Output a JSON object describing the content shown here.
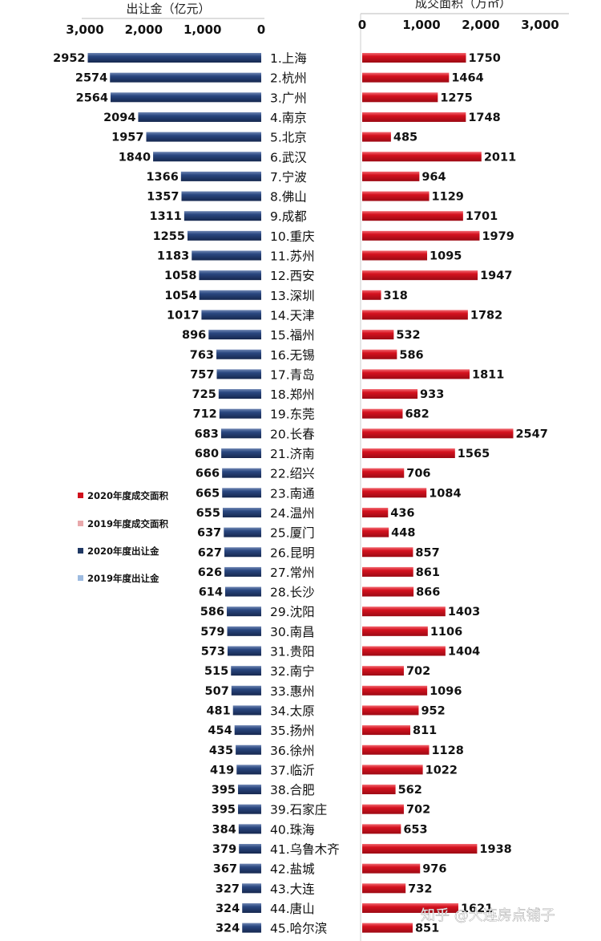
{
  "chart_data": [
    {
      "type": "bar",
      "orientation": "horizontal",
      "xlabel": "出让金（亿元）",
      "xlim": [
        3000,
        0
      ],
      "reversed": true,
      "ticks": [
        "3,000",
        "2,000",
        "1,000",
        "0"
      ],
      "categories": [
        "1.上海",
        "2.杭州",
        "3.广州",
        "4.南京",
        "5.北京",
        "6.武汉",
        "7.宁波",
        "8.佛山",
        "9.成都",
        "10.重庆",
        "11.苏州",
        "12.西安",
        "13.深圳",
        "14.天津",
        "15.福州",
        "16.无锡",
        "17.青岛",
        "18.郑州",
        "19.东莞",
        "20.长春",
        "21.济南",
        "22.绍兴",
        "23.南通",
        "24.温州",
        "25.厦门",
        "26.昆明",
        "27.常州",
        "28.长沙",
        "29.沈阳",
        "30.南昌",
        "31.贵阳",
        "32.南宁",
        "33.惠州",
        "34.太原",
        "35.扬州",
        "36.徐州",
        "37.临沂",
        "38.合肥",
        "39.石家庄",
        "40.珠海",
        "41.乌鲁木齐",
        "42.盐城",
        "43.大连",
        "44.唐山",
        "45.哈尔滨"
      ],
      "series": [
        {
          "name": "2020年度出让金",
          "color": "#1f3864",
          "values": [
            2952,
            2574,
            2564,
            2094,
            1957,
            1840,
            1366,
            1357,
            1311,
            1255,
            1183,
            1058,
            1054,
            1017,
            896,
            763,
            757,
            725,
            712,
            683,
            680,
            666,
            665,
            655,
            637,
            627,
            626,
            614,
            586,
            579,
            573,
            515,
            507,
            481,
            454,
            435,
            419,
            395,
            395,
            384,
            379,
            367,
            327,
            324,
            324
          ]
        }
      ]
    },
    {
      "type": "bar",
      "orientation": "horizontal",
      "xlabel": "成交面积（万㎡）",
      "xlim": [
        0,
        3000
      ],
      "ticks": [
        "0",
        "1,000",
        "2,000",
        "3,000"
      ],
      "series": [
        {
          "name": "2020年度成交面积",
          "color": "#d0101c",
          "values": [
            1750,
            1464,
            1275,
            1748,
            485,
            2011,
            964,
            1129,
            1701,
            1979,
            1095,
            1947,
            318,
            1782,
            532,
            586,
            1811,
            933,
            682,
            2547,
            1565,
            706,
            1084,
            436,
            448,
            857,
            861,
            866,
            1403,
            1106,
            1404,
            702,
            1096,
            952,
            811,
            1128,
            1022,
            562,
            702,
            653,
            1938,
            976,
            732,
            1621,
            851
          ]
        }
      ]
    }
  ],
  "legend": [
    {
      "label": "2020年度成交面积",
      "color": "#d0101c"
    },
    {
      "label": "2019年度成交面积",
      "color": "#e8a8ab"
    },
    {
      "label": "2020年度出让金",
      "color": "#1f3864"
    },
    {
      "label": "2019年度出让金",
      "color": "#9dbbe0"
    }
  ],
  "watermark": "知乎 @大连房点铺子"
}
